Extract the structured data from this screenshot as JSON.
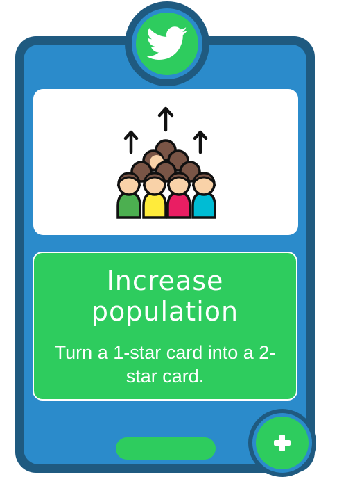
{
  "card": {
    "title": "Increase population",
    "description": "Turn a 1-star card into a 2-star card.",
    "badge_icon": "bird-icon",
    "illustration_icon": "population-growth-icon",
    "action_icon": "plus-icon"
  },
  "colors": {
    "frame_dark": "#1f5a80",
    "frame_blue": "#2b8bcb",
    "accent_green": "#2ecc5e",
    "panel_white": "#ffffff"
  }
}
